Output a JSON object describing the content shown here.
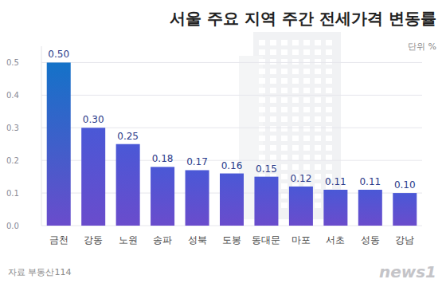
{
  "chart_data": {
    "type": "bar",
    "title": "서울 주요 지역 주간 전세가격 변동률",
    "unit": "단위 %",
    "source": "자료 부동산114",
    "logo": "news1",
    "categories": [
      "금천",
      "강동",
      "노원",
      "송파",
      "성북",
      "도봉",
      "동대문",
      "마포",
      "서초",
      "성동",
      "강남"
    ],
    "values": [
      0.5,
      0.3,
      0.25,
      0.18,
      0.17,
      0.16,
      0.15,
      0.12,
      0.11,
      0.11,
      0.1
    ],
    "value_labels": [
      "0.50",
      "0.30",
      "0.25",
      "0.18",
      "0.17",
      "0.16",
      "0.15",
      "0.12",
      "0.11",
      "0.11",
      "0.10"
    ],
    "colors": [
      "#1472c8",
      "#4a58d6",
      "#4a58d6",
      "#4a58d6",
      "#4a58d6",
      "#4a58d6",
      "#4a58d6",
      "#4a58d6",
      "#4a58d6",
      "#4a58d6",
      "#4a58d6"
    ],
    "ylim": [
      0,
      0.55
    ],
    "yticks": [
      {
        "value": 0,
        "label": "0.0"
      },
      0.1,
      0.2,
      0.3,
      0.4,
      0.5
    ],
    "grid": true,
    "data_labels": true
  }
}
